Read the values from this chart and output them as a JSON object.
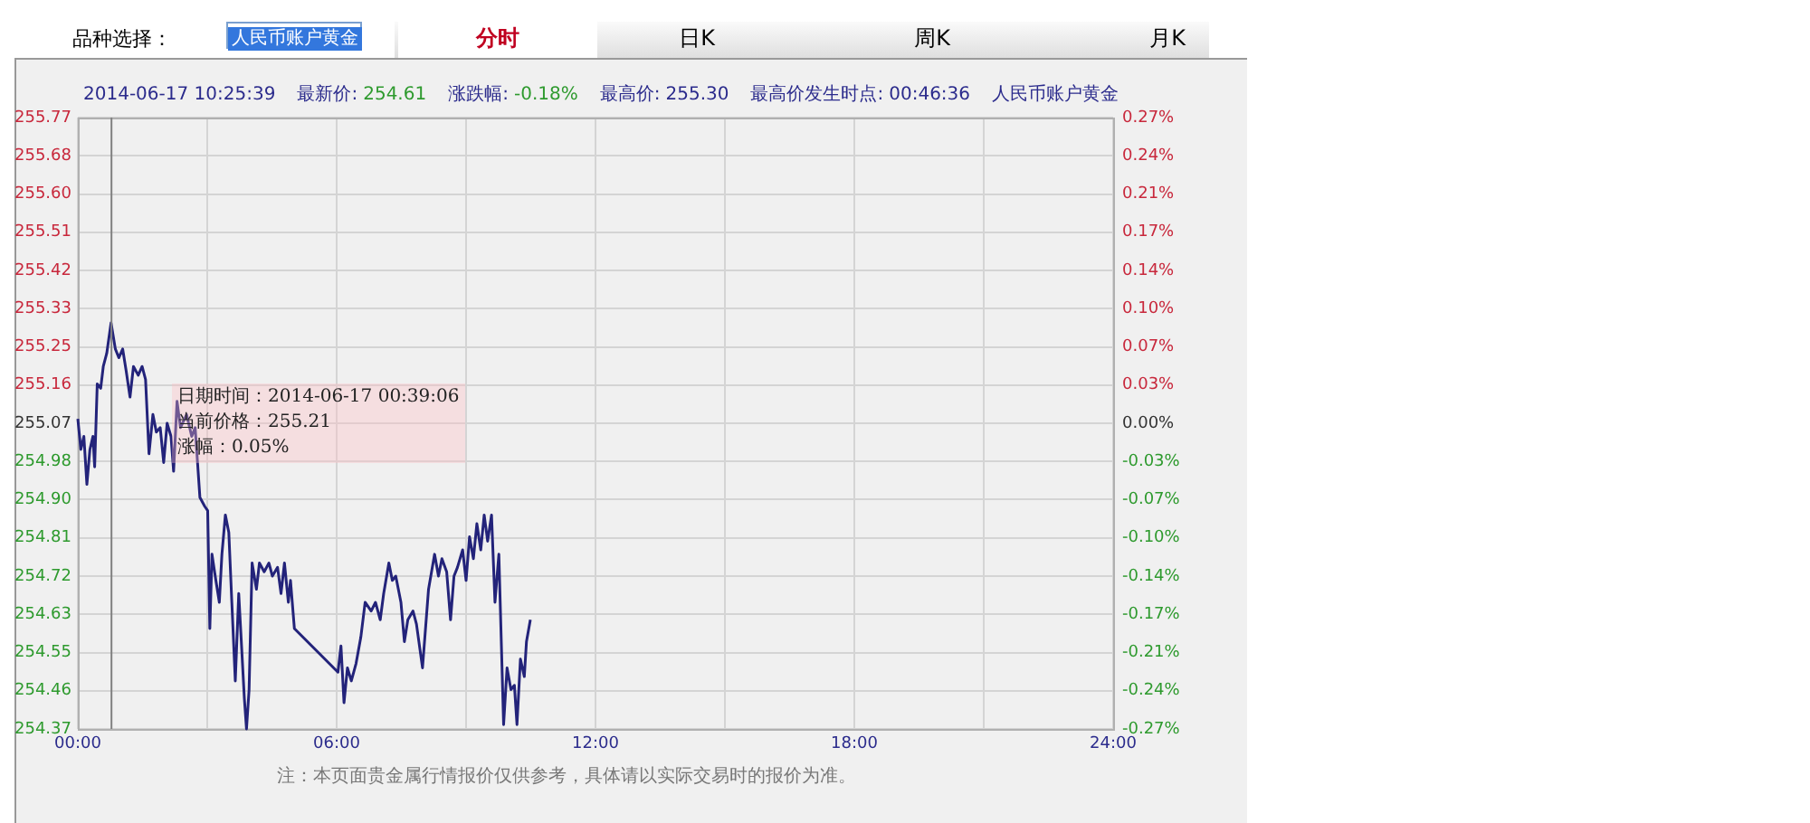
{
  "chart_data": {
    "type": "line",
    "x": [
      0,
      0.07,
      0.14,
      0.21,
      0.28,
      0.35,
      0.39,
      0.45,
      0.53,
      0.59,
      0.67,
      0.77,
      0.87,
      0.95,
      1.04,
      1.12,
      1.21,
      1.29,
      1.4,
      1.49,
      1.57,
      1.65,
      1.74,
      1.82,
      1.91,
      1.99,
      2.07,
      2.16,
      2.22,
      2.3,
      2.38,
      2.52,
      2.64,
      2.72,
      2.83,
      2.94,
      3.01,
      3.06,
      3.11,
      3.2,
      3.28,
      3.34,
      3.42,
      3.5,
      3.57,
      3.65,
      3.73,
      3.79,
      3.86,
      3.91,
      3.97,
      4.04,
      4.14,
      4.21,
      4.32,
      4.43,
      4.51,
      4.63,
      4.71,
      4.79,
      4.88,
      4.93,
      5.02,
      6.03,
      6.1,
      6.17,
      6.25,
      6.34,
      6.45,
      6.56,
      6.66,
      6.8,
      6.9,
      7.01,
      7.09,
      7.21,
      7.29,
      7.37,
      7.49,
      7.57,
      7.65,
      7.77,
      7.85,
      7.99,
      8.13,
      8.27,
      8.36,
      8.44,
      8.55,
      8.64,
      8.72,
      8.8,
      8.92,
      9.0,
      9.08,
      9.17,
      9.25,
      9.34,
      9.42,
      9.5,
      9.59,
      9.67,
      9.76,
      9.87,
      9.95,
      10.04,
      10.12,
      10.18,
      10.26,
      10.35,
      10.4,
      10.49
    ],
    "values": [
      255.08,
      255.01,
      255.04,
      254.93,
      255.01,
      255.04,
      254.97,
      255.16,
      255.15,
      255.2,
      255.23,
      255.3,
      255.24,
      255.22,
      255.24,
      255.19,
      255.13,
      255.2,
      255.18,
      255.2,
      255.17,
      255.0,
      255.09,
      255.05,
      255.06,
      254.98,
      255.07,
      255.04,
      254.96,
      255.12,
      255.06,
      255.09,
      255.04,
      255.06,
      254.9,
      254.88,
      254.87,
      254.6,
      254.77,
      254.71,
      254.66,
      254.77,
      254.86,
      254.82,
      254.66,
      254.48,
      254.68,
      254.57,
      254.44,
      254.37,
      254.46,
      254.75,
      254.69,
      254.75,
      254.73,
      254.75,
      254.72,
      254.74,
      254.68,
      254.75,
      254.66,
      254.71,
      254.6,
      254.5,
      254.56,
      254.43,
      254.51,
      254.48,
      254.52,
      254.58,
      254.66,
      254.64,
      254.66,
      254.62,
      254.68,
      254.75,
      254.71,
      254.72,
      254.66,
      254.57,
      254.62,
      254.64,
      254.61,
      254.51,
      254.69,
      254.77,
      254.72,
      254.76,
      254.73,
      254.62,
      254.72,
      254.74,
      254.78,
      254.71,
      254.81,
      254.76,
      254.84,
      254.78,
      254.86,
      254.8,
      254.86,
      254.66,
      254.77,
      254.38,
      254.51,
      254.46,
      254.47,
      254.38,
      254.53,
      254.49,
      254.57,
      254.62
    ],
    "color": "#23237a",
    "marker": "none",
    "xlim": [
      0,
      24
    ],
    "xticks": [
      {
        "value": 0,
        "label": "00:00"
      },
      {
        "value": 3,
        "label": null
      },
      {
        "value": 6,
        "label": "06:00"
      },
      {
        "value": 9,
        "label": null
      },
      {
        "value": 12,
        "label": "12:00"
      },
      {
        "value": 15,
        "label": null
      },
      {
        "value": 18,
        "label": "18:00"
      },
      {
        "value": 21,
        "label": null
      },
      {
        "value": 24,
        "label": "24:00"
      }
    ],
    "ylim": [
      254.37,
      255.77
    ],
    "yticks": [
      254.37,
      {
        "value": 254.4575,
        "label": "254.46"
      },
      {
        "value": 254.545,
        "label": "254.55"
      },
      {
        "value": 254.6325,
        "label": "254.63"
      },
      254.72,
      {
        "value": 254.8075,
        "label": "254.81"
      },
      {
        "value": 254.895,
        "label": "254.90"
      },
      {
        "value": 254.9825,
        "label": "254.98"
      },
      255.07,
      {
        "value": 255.1575,
        "label": "255.16"
      },
      {
        "value": 255.245,
        "label": "255.25"
      },
      {
        "value": 255.3325,
        "label": "255.33"
      },
      255.42,
      {
        "value": 255.5075,
        "label": "255.51"
      },
      {
        "value": 255.595,
        "label": "255.60"
      },
      {
        "value": 255.6825,
        "label": "255.68"
      },
      255.77
    ],
    "y2lim": [
      -0.2744,
      0.2744
    ],
    "y2ticks": [
      {
        "value": -0.2744,
        "label": "-0.27%"
      },
      {
        "value": -0.2401,
        "label": "-0.24%"
      },
      {
        "value": -0.2058,
        "label": "-0.21%"
      },
      {
        "value": -0.1715,
        "label": "-0.17%"
      },
      {
        "value": -0.1372,
        "label": "-0.14%"
      },
      {
        "value": -0.1029,
        "label": "-0.10%"
      },
      {
        "value": -0.0686,
        "label": "-0.07%"
      },
      {
        "value": -0.0343,
        "label": "-0.03%"
      },
      {
        "value": 0,
        "label": "0.00%"
      },
      {
        "value": 0.0343,
        "label": "0.03%"
      },
      {
        "value": 0.0686,
        "label": "0.07%"
      },
      {
        "value": 0.1029,
        "label": "0.10%"
      },
      {
        "value": 0.1372,
        "label": "0.14%"
      },
      {
        "value": 0.1715,
        "label": "0.17%"
      },
      {
        "value": 0.2058,
        "label": "0.21%"
      },
      {
        "value": 0.2401,
        "label": "0.24%"
      },
      {
        "value": 0.2744,
        "label": "0.27%"
      }
    ],
    "grid": true,
    "ref_lines": [
      {
        "axis": "x",
        "value": 0.78,
        "color": "#808080"
      }
    ],
    "annotations": [
      "品种选择：",
      "人民币账户黄金",
      "分时",
      "日K",
      "周K",
      "月K",
      "2014-06-17 10:25:39",
      "最新价:",
      "254.61",
      "涨跌幅:",
      "-0.18%",
      "最高价:",
      "255.30",
      "最高价发生时点:",
      "00:46:36",
      "人民币账户黄金",
      "日期时间：2014-06-17 00:39:06\n当前价格：255.21\n涨幅：0.05%",
      "注：本页面贵金属行情报价仅供参考，具体请以实际交易时的报价为准。"
    ]
  }
}
